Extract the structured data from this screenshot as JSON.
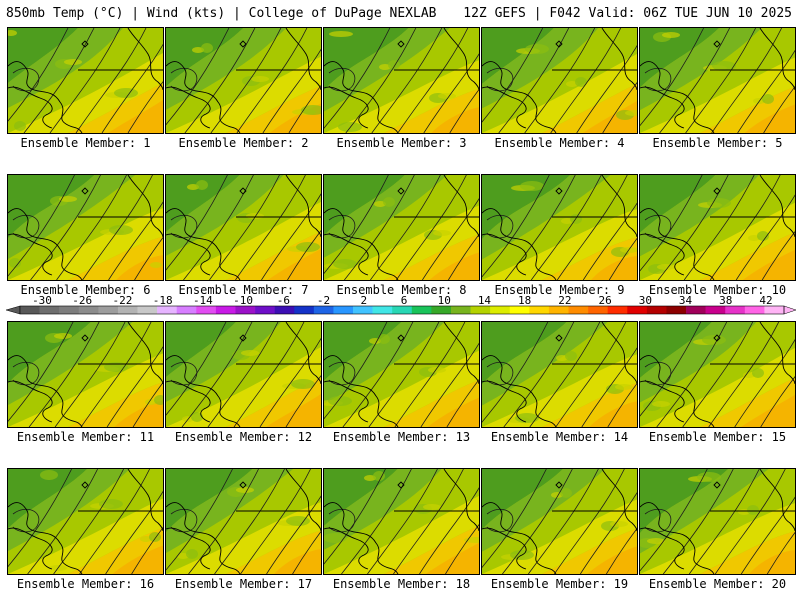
{
  "header": {
    "title_left": "850mb Temp (°C) | Wind (kts) | College of DuPage NEXLAB",
    "title_right": "12Z GEFS | F042 Valid: 06Z TUE JUN 10 2025"
  },
  "panels": [
    {
      "label": "Ensemble Member: 1"
    },
    {
      "label": "Ensemble Member: 2"
    },
    {
      "label": "Ensemble Member: 3"
    },
    {
      "label": "Ensemble Member: 4"
    },
    {
      "label": "Ensemble Member: 5"
    },
    {
      "label": "Ensemble Member: 6"
    },
    {
      "label": "Ensemble Member: 7"
    },
    {
      "label": "Ensemble Member: 8"
    },
    {
      "label": "Ensemble Member: 9"
    },
    {
      "label": "Ensemble Member: 10"
    },
    {
      "label": "Ensemble Member: 11"
    },
    {
      "label": "Ensemble Member: 12"
    },
    {
      "label": "Ensemble Member: 13"
    },
    {
      "label": "Ensemble Member: 14"
    },
    {
      "label": "Ensemble Member: 15"
    },
    {
      "label": "Ensemble Member: 16"
    },
    {
      "label": "Ensemble Member: 17"
    },
    {
      "label": "Ensemble Member: 18"
    },
    {
      "label": "Ensemble Member: 19"
    },
    {
      "label": "Ensemble Member: 20"
    }
  ],
  "colorbar": {
    "tick_labels": [
      "-30",
      "-26",
      "-22",
      "-18",
      "-14",
      "-10",
      "-6",
      "-2",
      "2",
      "6",
      "10",
      "14",
      "18",
      "22",
      "26",
      "30",
      "34",
      "38",
      "42"
    ],
    "colors": [
      "#585858",
      "#6e6e6e",
      "#7d7d7d",
      "#8c8c8c",
      "#9d9d9d",
      "#b3b3b3",
      "#c8c8c8",
      "#e6b4ff",
      "#d77eff",
      "#e14cf1",
      "#c81ae6",
      "#9b12c8",
      "#6e0fc8",
      "#3c0fb4",
      "#1432c8",
      "#1e64e6",
      "#2896ff",
      "#41c3ff",
      "#41e6e6",
      "#28d7b4",
      "#19c35a",
      "#37a828",
      "#78b41e",
      "#b4d200",
      "#dcec00",
      "#ffff00",
      "#ffd700",
      "#ffb400",
      "#ff8c00",
      "#ff6400",
      "#ff2d00",
      "#e10000",
      "#b40000",
      "#8c0000",
      "#a0005a",
      "#c8008c",
      "#e632c8",
      "#ff64e6",
      "#ffb4f5"
    ],
    "colors_note_unused": null
  }
}
